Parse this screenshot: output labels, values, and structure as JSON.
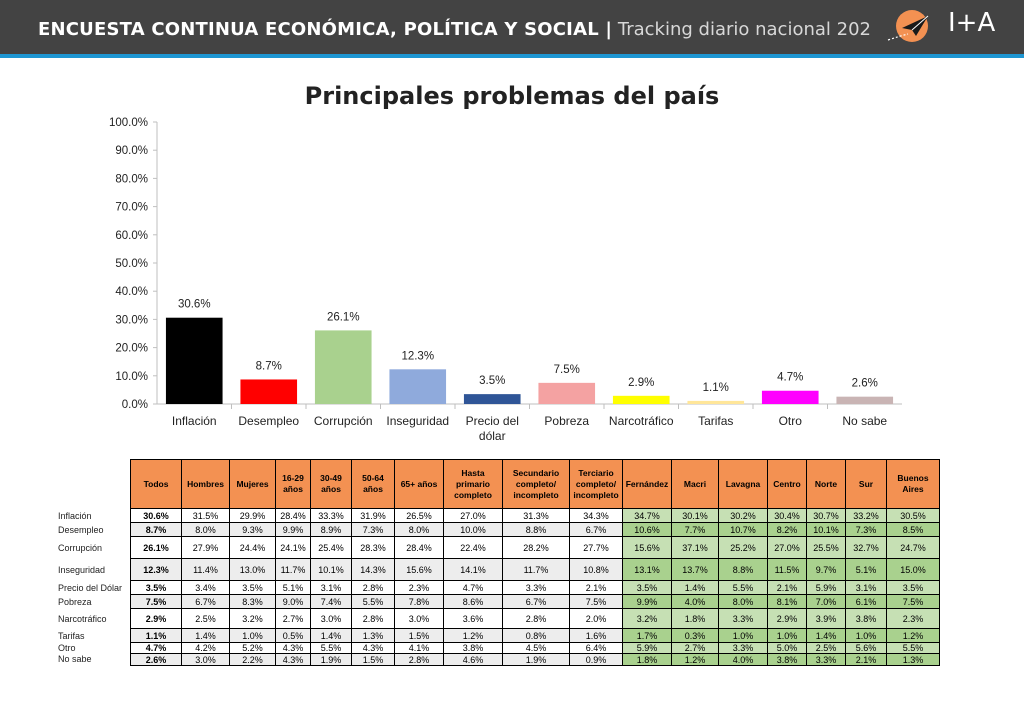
{
  "header": {
    "title_main": "ENCUESTA CONTINUA ECONÓMICA, POLÍTICA Y SOCIAL |",
    "title_sub": "Tracking diario nacional 202",
    "logo_text": "I+A"
  },
  "colors": {
    "header_bg": "#434343",
    "accent_line": "#1e96d2",
    "table_header": "#f39152",
    "table_green": "#c6e0b4"
  },
  "chart_data": {
    "type": "bar",
    "title": "Principales problemas del país",
    "categories": [
      "Inflación",
      "Desempleo",
      "Corrupción",
      "Inseguridad",
      "Precio del dólar",
      "Pobreza",
      "Narcotráfico",
      "Tarifas",
      "Otro",
      "No sabe"
    ],
    "values": [
      30.6,
      8.7,
      26.1,
      12.3,
      3.5,
      7.5,
      2.9,
      1.1,
      4.7,
      2.6
    ],
    "value_labels": [
      "30.6%",
      "8.7%",
      "26.1%",
      "12.3%",
      "3.5%",
      "7.5%",
      "2.9%",
      "1.1%",
      "4.7%",
      "2.6%"
    ],
    "colors": [
      "#000000",
      "#ff0000",
      "#a9d18e",
      "#8faadc",
      "#2f5597",
      "#f4a2a2",
      "#ffff00",
      "#ffe699",
      "#ff00ff",
      "#c9b4b4"
    ],
    "ylim": [
      0,
      100
    ],
    "yticks": [
      "0.0%",
      "10.0%",
      "20.0%",
      "30.0%",
      "40.0%",
      "50.0%",
      "60.0%",
      "70.0%",
      "80.0%",
      "90.0%",
      "100.0%"
    ],
    "xlabel": "",
    "ylabel": "",
    "grid": false
  },
  "table": {
    "columns": [
      "Todos",
      "Hombres",
      "Mujeres",
      "16-29 años",
      "30-49 años",
      "50-64 años",
      "65+ años",
      "Hasta primario completo",
      "Secundario completo/ incompleto",
      "Terciario completo/ incompleto",
      "Fernández",
      "Macri",
      "Lavagna",
      "Centro",
      "Norte",
      "Sur",
      "Buenos Aires"
    ],
    "rows": [
      {
        "label": "Inflación",
        "values": [
          "30.6%",
          "31.5%",
          "29.9%",
          "28.4%",
          "33.3%",
          "31.9%",
          "26.5%",
          "27.0%",
          "31.3%",
          "34.3%",
          "34.7%",
          "30.1%",
          "30.2%",
          "30.4%",
          "30.7%",
          "33.2%",
          "30.5%"
        ]
      },
      {
        "label": "Desempleo",
        "values": [
          "8.7%",
          "8.0%",
          "9.3%",
          "9.9%",
          "8.9%",
          "7.3%",
          "8.0%",
          "10.0%",
          "8.8%",
          "6.7%",
          "10.6%",
          "7.7%",
          "10.7%",
          "8.2%",
          "10.1%",
          "7.3%",
          "8.5%"
        ]
      },
      {
        "label": "Corrupción",
        "values": [
          "26.1%",
          "27.9%",
          "24.4%",
          "24.1%",
          "25.4%",
          "28.3%",
          "28.4%",
          "22.4%",
          "28.2%",
          "27.7%",
          "15.6%",
          "37.1%",
          "25.2%",
          "27.0%",
          "25.5%",
          "32.7%",
          "24.7%"
        ]
      },
      {
        "label": "Inseguridad",
        "values": [
          "12.3%",
          "11.4%",
          "13.0%",
          "11.7%",
          "10.1%",
          "14.3%",
          "15.6%",
          "14.1%",
          "11.7%",
          "10.8%",
          "13.1%",
          "13.7%",
          "8.8%",
          "11.5%",
          "9.7%",
          "5.1%",
          "15.0%"
        ]
      },
      {
        "label": "Precio del Dólar",
        "values": [
          "3.5%",
          "3.4%",
          "3.5%",
          "5.1%",
          "3.1%",
          "2.8%",
          "2.3%",
          "4.7%",
          "3.3%",
          "2.1%",
          "3.5%",
          "1.4%",
          "5.5%",
          "2.1%",
          "5.9%",
          "3.1%",
          "3.5%"
        ]
      },
      {
        "label": "Pobreza",
        "values": [
          "7.5%",
          "6.7%",
          "8.3%",
          "9.0%",
          "7.4%",
          "5.5%",
          "7.8%",
          "8.6%",
          "6.7%",
          "7.5%",
          "9.9%",
          "4.0%",
          "8.0%",
          "8.1%",
          "7.0%",
          "6.1%",
          "7.5%"
        ]
      },
      {
        "label": "Narcotráfico",
        "values": [
          "2.9%",
          "2.5%",
          "3.2%",
          "2.7%",
          "3.0%",
          "2.8%",
          "3.0%",
          "3.6%",
          "2.8%",
          "2.0%",
          "3.2%",
          "1.8%",
          "3.3%",
          "2.9%",
          "3.9%",
          "3.8%",
          "2.3%"
        ]
      },
      {
        "label": "Tarifas",
        "values": [
          "1.1%",
          "1.4%",
          "1.0%",
          "0.5%",
          "1.4%",
          "1.3%",
          "1.5%",
          "1.2%",
          "0.8%",
          "1.6%",
          "1.7%",
          "0.3%",
          "1.0%",
          "1.0%",
          "1.4%",
          "1.0%",
          "1.2%"
        ]
      },
      {
        "label": "Otro",
        "values": [
          "4.7%",
          "4.2%",
          "5.2%",
          "4.3%",
          "5.5%",
          "4.3%",
          "4.1%",
          "3.8%",
          "4.5%",
          "6.4%",
          "5.9%",
          "2.7%",
          "3.3%",
          "5.0%",
          "2.5%",
          "5.6%",
          "5.5%"
        ]
      },
      {
        "label": "No sabe",
        "values": [
          "2.6%",
          "3.0%",
          "2.2%",
          "4.3%",
          "1.9%",
          "1.5%",
          "2.8%",
          "4.6%",
          "1.9%",
          "0.9%",
          "1.8%",
          "1.2%",
          "4.0%",
          "3.8%",
          "3.3%",
          "2.1%",
          "1.3%"
        ]
      }
    ]
  }
}
